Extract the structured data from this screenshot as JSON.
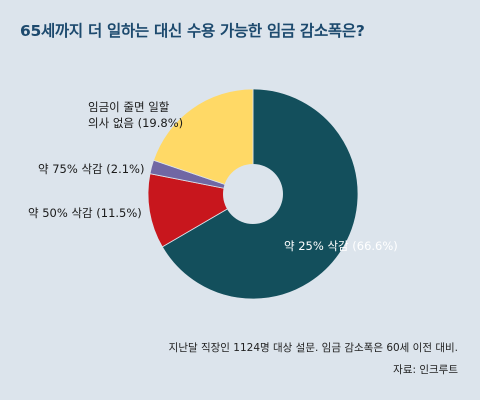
{
  "chart_data": {
    "type": "pie",
    "title": "65세까지 더 일하는 대신 수용 가능한 임금 감소폭은?",
    "slices": [
      {
        "label": "약 25% 삭감",
        "value": 66.6,
        "value_label": "(66.6%)",
        "color": "#134f5c"
      },
      {
        "label": "약 50% 삭감",
        "value": 11.5,
        "value_label": "(11.5%)",
        "color": "#c8161d"
      },
      {
        "label": "약 75% 삭감",
        "value": 2.1,
        "value_label": "(2.1%)",
        "color": "#7067a4"
      },
      {
        "label": "임금이 줄면 일할 의사 없음",
        "value": 19.8,
        "value_label": "(19.8%)",
        "color": "#ffd966"
      }
    ],
    "label_lines": [
      [
        "약 25% 삭감 (66.6%)"
      ],
      [
        "약 50% 삭감 (11.5%)"
      ],
      [
        "약 75% 삭감 (2.1%)"
      ],
      [
        "임금이 줄면 일할",
        "의사 없음 (19.8%)"
      ]
    ],
    "donut": true,
    "center_color": "#dce4ec"
  },
  "footnote": "지난달 직장인 1124명 대상 설문. 임금 감소폭은 60세 이전 대비.",
  "source": "자료: 인크루트"
}
